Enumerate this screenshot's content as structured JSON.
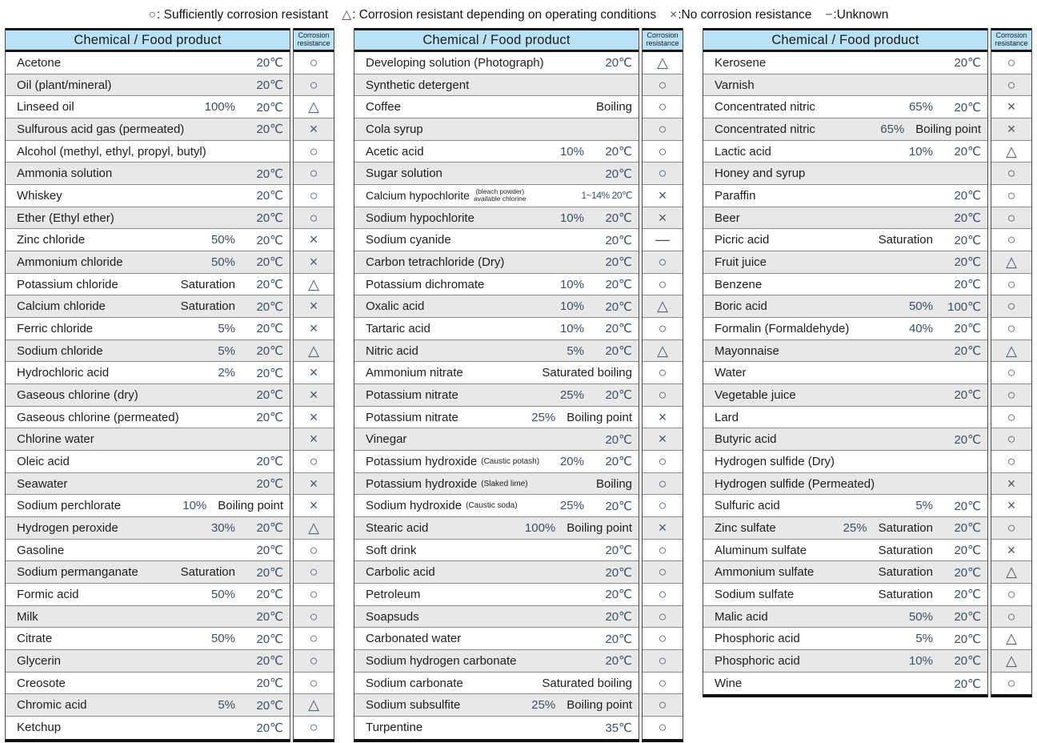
{
  "colors": {
    "header_bg": "#b9e2f6",
    "stripe_bg": "#e8e8e8",
    "symbol_color": "#46566e",
    "numeric_value_color": "#3c4e68"
  },
  "legend": {
    "items": [
      {
        "symbol": "○",
        "text": ": Sufficiently corrosion resistant"
      },
      {
        "symbol": "△",
        "text": ": Corrosion resistant depending on operating conditions"
      },
      {
        "symbol": "×",
        "text": ":No corrosion resistance"
      },
      {
        "symbol": "−",
        "text": ":Unknown"
      }
    ]
  },
  "header": {
    "product": "Chemical / Food product",
    "resistance_line1": "Corrosion",
    "resistance_line2": "resistance"
  },
  "tables": [
    {
      "rows": [
        {
          "name": "Acetone",
          "values": [
            "20℃"
          ],
          "symbol": "○"
        },
        {
          "name": "Oil (plant/mineral)",
          "values": [
            "20℃"
          ],
          "symbol": "○"
        },
        {
          "name": "Linseed oil",
          "values": [
            "100%",
            "20℃"
          ],
          "symbol": "△"
        },
        {
          "name": "Sulfurous acid gas (permeated)",
          "values": [
            "20℃"
          ],
          "symbol": "×"
        },
        {
          "name": "Alcohol (methyl, ethyl, propyl, butyl)",
          "values": [],
          "symbol": "○"
        },
        {
          "name": "Ammonia solution",
          "values": [
            "20℃"
          ],
          "symbol": "○"
        },
        {
          "name": "Whiskey",
          "values": [
            "20℃"
          ],
          "symbol": "○"
        },
        {
          "name": "Ether (Ethyl ether)",
          "values": [
            "20℃"
          ],
          "symbol": "○"
        },
        {
          "name": "Zinc chloride",
          "values": [
            "50%",
            "20℃"
          ],
          "symbol": "×"
        },
        {
          "name": "Ammonium chloride",
          "values": [
            "50%",
            "20℃"
          ],
          "symbol": "×"
        },
        {
          "name": "Potassium chloride",
          "values": [
            "Saturation",
            "20℃"
          ],
          "symbol": "△"
        },
        {
          "name": "Calcium chloride",
          "values": [
            "Saturation",
            "20℃"
          ],
          "symbol": "×"
        },
        {
          "name": "Ferric chloride",
          "values": [
            "5%",
            "20℃"
          ],
          "symbol": "×"
        },
        {
          "name": "Sodium chloride",
          "values": [
            "5%",
            "20℃"
          ],
          "symbol": "△"
        },
        {
          "name": "Hydrochloric acid",
          "values": [
            "2%",
            "20℃"
          ],
          "symbol": "×"
        },
        {
          "name": "Gaseous chlorine (dry)",
          "values": [
            "20℃"
          ],
          "symbol": "×"
        },
        {
          "name": "Gaseous chlorine (permeated)",
          "values": [
            "20℃"
          ],
          "symbol": "×"
        },
        {
          "name": "Chlorine water",
          "values": [],
          "symbol": "×"
        },
        {
          "name": "Oleic acid",
          "values": [
            "20℃"
          ],
          "symbol": "○"
        },
        {
          "name": "Seawater",
          "values": [
            "20℃"
          ],
          "symbol": "×"
        },
        {
          "name": "Sodium perchlorate",
          "values": [
            "10%",
            "Boiling point"
          ],
          "symbol": "×"
        },
        {
          "name": "Hydrogen peroxide",
          "values": [
            "30%",
            "20℃"
          ],
          "symbol": "△"
        },
        {
          "name": "Gasoline",
          "values": [
            "20℃"
          ],
          "symbol": "○"
        },
        {
          "name": "Sodium permanganate",
          "values": [
            "Saturation",
            "20℃"
          ],
          "symbol": "○"
        },
        {
          "name": "Formic acid",
          "values": [
            "50%",
            "20℃"
          ],
          "symbol": "○"
        },
        {
          "name": "Milk",
          "values": [
            "20℃"
          ],
          "symbol": "○"
        },
        {
          "name": "Citrate",
          "values": [
            "50%",
            "20℃"
          ],
          "symbol": "○"
        },
        {
          "name": "Glycerin",
          "values": [
            "20℃"
          ],
          "symbol": "○"
        },
        {
          "name": "Creosote",
          "values": [
            "20℃"
          ],
          "symbol": "○"
        },
        {
          "name": "Chromic acid",
          "values": [
            "5%",
            "20℃"
          ],
          "symbol": "△"
        },
        {
          "name": "Ketchup",
          "values": [
            "20℃"
          ],
          "symbol": "○"
        }
      ]
    },
    {
      "rows": [
        {
          "name": "Developing solution (Photograph)",
          "values": [
            "20℃"
          ],
          "symbol": "△"
        },
        {
          "name": "Synthetic detergent",
          "values": [],
          "symbol": "○"
        },
        {
          "name": "Coffee",
          "values": [
            "Boiling"
          ],
          "symbol": "○"
        },
        {
          "name": "Cola syrup",
          "values": [],
          "symbol": "○"
        },
        {
          "name": "Acetic acid",
          "values": [
            "10%",
            "20℃"
          ],
          "symbol": "○"
        },
        {
          "name": "Sugar solution",
          "values": [
            "20℃"
          ],
          "symbol": "○"
        },
        {
          "name": "Calcium hypochlorite",
          "note_lines": [
            "(bleach powder)",
            "available chlorine"
          ],
          "values": [
            "1~14%",
            "20℃"
          ],
          "symbol": "×",
          "compact": true
        },
        {
          "name": "Sodium hypochlorite",
          "values": [
            "10%",
            "20℃"
          ],
          "symbol": "×"
        },
        {
          "name": "Sodium cyanide",
          "values": [
            "20℃"
          ],
          "symbol": "—"
        },
        {
          "name": "Carbon tetrachloride (Dry)",
          "values": [
            "20℃"
          ],
          "symbol": "○"
        },
        {
          "name": "Potassium dichromate",
          "values": [
            "10%",
            "20℃"
          ],
          "symbol": "○"
        },
        {
          "name": "Oxalic acid",
          "values": [
            "10%",
            "20℃"
          ],
          "symbol": "△"
        },
        {
          "name": "Tartaric acid",
          "values": [
            "10%",
            "20℃"
          ],
          "symbol": "○"
        },
        {
          "name": "Nitric acid",
          "values": [
            "5%",
            "20℃"
          ],
          "symbol": "△"
        },
        {
          "name": "Ammonium nitrate",
          "values": [
            "Saturated boiling"
          ],
          "symbol": "○"
        },
        {
          "name": "Potassium nitrate",
          "values": [
            "25%",
            "20℃"
          ],
          "symbol": "○"
        },
        {
          "name": "Potassium nitrate",
          "values": [
            "25%",
            "Boiling point"
          ],
          "symbol": "×"
        },
        {
          "name": "Vinegar",
          "values": [
            "20℃"
          ],
          "symbol": "×"
        },
        {
          "name": "Potassium hydroxide",
          "note": "(Caustic potash)",
          "values": [
            "20%",
            "20℃"
          ],
          "symbol": "○"
        },
        {
          "name": "Potassium hydroxide",
          "note": "(Slaked lime)",
          "values": [
            "Boiling"
          ],
          "symbol": "○"
        },
        {
          "name": "Sodium hydroxide",
          "note": "(Caustic soda)",
          "values": [
            "25%",
            "20℃"
          ],
          "symbol": "○"
        },
        {
          "name": "Stearic acid",
          "values": [
            "100%",
            "Boiling point"
          ],
          "symbol": "×"
        },
        {
          "name": "Soft drink",
          "values": [
            "20℃"
          ],
          "symbol": "○"
        },
        {
          "name": "Carbolic acid",
          "values": [
            "20℃"
          ],
          "symbol": "○"
        },
        {
          "name": "Petroleum",
          "values": [
            "20℃"
          ],
          "symbol": "○"
        },
        {
          "name": "Soapsuds",
          "values": [
            "20℃"
          ],
          "symbol": "○"
        },
        {
          "name": "Carbonated water",
          "values": [
            "20℃"
          ],
          "symbol": "○"
        },
        {
          "name": "Sodium hydrogen carbonate",
          "values": [
            "20℃"
          ],
          "symbol": "○"
        },
        {
          "name": "Sodium carbonate",
          "values": [
            "Saturated boiling"
          ],
          "symbol": "○"
        },
        {
          "name": "Sodium subsulfite",
          "values": [
            "25%",
            "Boiling point"
          ],
          "symbol": "○"
        },
        {
          "name": "Turpentine",
          "values": [
            "35℃"
          ],
          "symbol": "○"
        }
      ]
    },
    {
      "rows": [
        {
          "name": "Kerosene",
          "values": [
            "20℃"
          ],
          "symbol": "○"
        },
        {
          "name": "Varnish",
          "values": [],
          "symbol": "○"
        },
        {
          "name": "Concentrated nitric",
          "values": [
            "65%",
            "20℃"
          ],
          "symbol": "×"
        },
        {
          "name": "Concentrated nitric",
          "values": [
            "65%",
            "Boiling point"
          ],
          "symbol": "×"
        },
        {
          "name": "Lactic acid",
          "values": [
            "10%",
            "20℃"
          ],
          "symbol": "△"
        },
        {
          "name": "Honey and syrup",
          "values": [],
          "symbol": "○"
        },
        {
          "name": "Paraffin",
          "values": [
            "20℃"
          ],
          "symbol": "○"
        },
        {
          "name": "Beer",
          "values": [
            "20℃"
          ],
          "symbol": "○"
        },
        {
          "name": "Picric acid",
          "values": [
            "Saturation",
            "20℃"
          ],
          "symbol": "○"
        },
        {
          "name": "Fruit juice",
          "values": [
            "20℃"
          ],
          "symbol": "△"
        },
        {
          "name": "Benzene",
          "values": [
            "20℃"
          ],
          "symbol": "○"
        },
        {
          "name": "Boric acid",
          "values": [
            "50%",
            "100℃"
          ],
          "symbol": "○"
        },
        {
          "name": "Formalin (Formaldehyde)",
          "values": [
            "40%",
            "20℃"
          ],
          "symbol": "○"
        },
        {
          "name": "Mayonnaise",
          "values": [
            "20℃"
          ],
          "symbol": "△"
        },
        {
          "name": "Water",
          "values": [],
          "symbol": "○"
        },
        {
          "name": "Vegetable juice",
          "values": [
            "20℃"
          ],
          "symbol": "○"
        },
        {
          "name": "Lard",
          "values": [],
          "symbol": "○"
        },
        {
          "name": "Butyric acid",
          "values": [
            "20℃"
          ],
          "symbol": "○"
        },
        {
          "name": "Hydrogen sulfide (Dry)",
          "values": [],
          "symbol": "○"
        },
        {
          "name": "Hydrogen sulfide (Permeated)",
          "values": [],
          "symbol": "×"
        },
        {
          "name": "Sulfuric acid",
          "values": [
            "5%",
            "20℃"
          ],
          "symbol": "×"
        },
        {
          "name": "Zinc sulfate",
          "values": [
            "25%",
            "Saturation",
            "20℃"
          ],
          "symbol": "○"
        },
        {
          "name": "Aluminum sulfate",
          "values": [
            "Saturation",
            "20℃"
          ],
          "symbol": "×"
        },
        {
          "name": "Ammonium sulfate",
          "values": [
            "Saturation",
            "20℃"
          ],
          "symbol": "△"
        },
        {
          "name": "Sodium sulfate",
          "values": [
            "Saturation",
            "20℃"
          ],
          "symbol": "○"
        },
        {
          "name": "Malic acid",
          "values": [
            "50%",
            "20℃"
          ],
          "symbol": "○"
        },
        {
          "name": "Phosphoric acid",
          "values": [
            "5%",
            "20℃"
          ],
          "symbol": "△"
        },
        {
          "name": "Phosphoric acid",
          "values": [
            "10%",
            "20℃"
          ],
          "symbol": "△"
        },
        {
          "name": "Wine",
          "values": [
            "20℃"
          ],
          "symbol": "○"
        }
      ]
    }
  ]
}
